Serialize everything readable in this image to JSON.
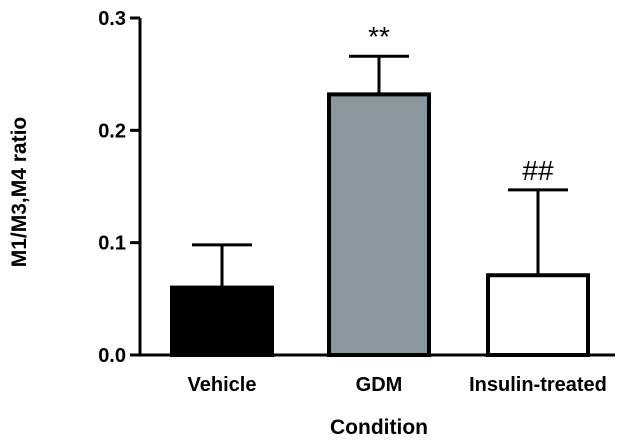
{
  "chart_data": {
    "type": "bar",
    "title": "",
    "xlabel": "Condition",
    "ylabel": "M1/M3,M4 ratio",
    "ylim": [
      0,
      0.3
    ],
    "yticks": [
      "0.0",
      "0.1",
      "0.2",
      "0.3"
    ],
    "categories": [
      "Vehicle",
      "GDM",
      "Insulin-treated"
    ],
    "values": [
      0.06,
      0.232,
      0.071
    ],
    "errors": [
      0.038,
      0.034,
      0.076
    ],
    "annotations": [
      "",
      "**",
      "##"
    ],
    "colors": [
      "#000000",
      "#8a989e",
      "#ffffff"
    ],
    "grid": false,
    "legend": "none"
  }
}
